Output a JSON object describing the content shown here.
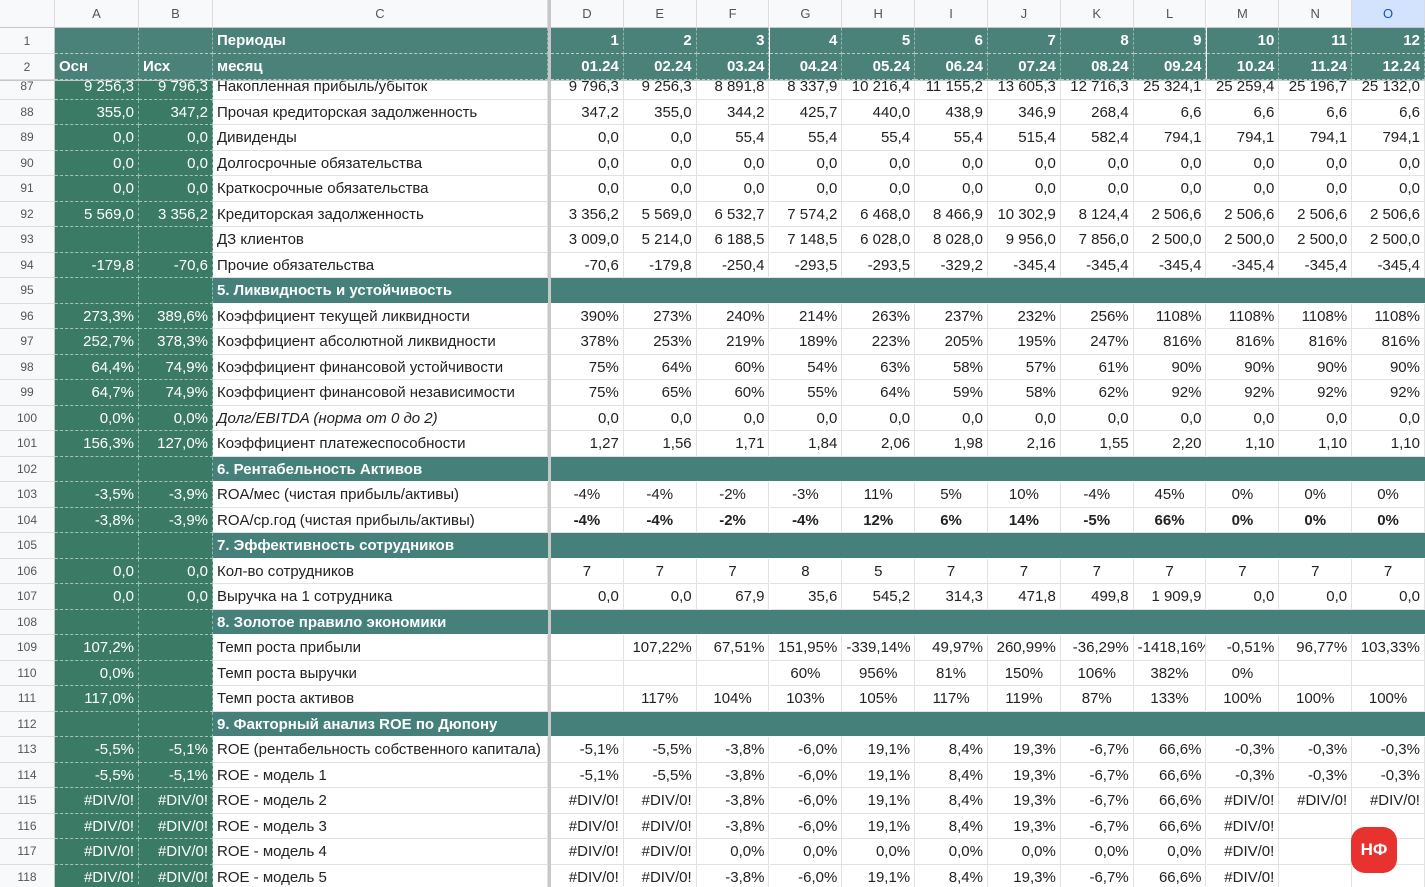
{
  "columns": [
    "A",
    "B",
    "C",
    "D",
    "E",
    "F",
    "G",
    "H",
    "I",
    "J",
    "K",
    "L",
    "M",
    "N",
    "O"
  ],
  "header_rows": [
    {
      "number": 1,
      "cells": [
        null,
        null,
        "Периоды",
        "1",
        "2",
        "3",
        "4",
        "5",
        "6",
        "7",
        "8",
        "9",
        "10",
        "11",
        "12"
      ]
    },
    {
      "number": 2,
      "cells": [
        "Осн",
        "Исх",
        "месяц",
        "01.24",
        "02.24",
        "03.24",
        "04.24",
        "05.24",
        "06.24",
        "07.24",
        "08.24",
        "09.24",
        "10.24",
        "11.24",
        "12.24"
      ]
    }
  ],
  "rows": [
    {
      "number": 87,
      "cells": [
        "9 256,3",
        "9 796,3",
        "Накопленная прибыль/убыток",
        "9 796,3",
        "9 256,3",
        "8 891,8",
        "8 337,9",
        "10 216,4",
        "11 155,2",
        "13 605,3",
        "12 716,3",
        "25 324,1",
        "25 259,4",
        "25 196,7",
        "25 132,0"
      ]
    },
    {
      "number": 88,
      "cells": [
        "355,0",
        "347,2",
        "Прочая кредиторская задолженность",
        "347,2",
        "355,0",
        "344,2",
        "425,7",
        "440,0",
        "438,9",
        "346,9",
        "268,4",
        "6,6",
        "6,6",
        "6,6",
        "6,6"
      ]
    },
    {
      "number": 89,
      "cells": [
        "0,0",
        "0,0",
        "Дивиденды",
        "0,0",
        "0,0",
        "55,4",
        "55,4",
        "55,4",
        "55,4",
        "515,4",
        "582,4",
        "794,1",
        "794,1",
        "794,1",
        "794,1"
      ]
    },
    {
      "number": 90,
      "cells": [
        "0,0",
        "0,0",
        "Долгосрочные обязательства",
        "0,0",
        "0,0",
        "0,0",
        "0,0",
        "0,0",
        "0,0",
        "0,0",
        "0,0",
        "0,0",
        "0,0",
        "0,0",
        "0,0"
      ]
    },
    {
      "number": 91,
      "cells": [
        "0,0",
        "0,0",
        "Краткосрочные обязательства",
        "0,0",
        "0,0",
        "0,0",
        "0,0",
        "0,0",
        "0,0",
        "0,0",
        "0,0",
        "0,0",
        "0,0",
        "0,0",
        "0,0"
      ]
    },
    {
      "number": 92,
      "cells": [
        "5 569,0",
        "3 356,2",
        "Кредиторская задолженность",
        "3 356,2",
        "5 569,0",
        "6 532,7",
        "7 574,2",
        "6 468,0",
        "8 466,9",
        "10 302,9",
        "8 124,4",
        "2 506,6",
        "2 506,6",
        "2 506,6",
        "2 506,6"
      ]
    },
    {
      "number": 93,
      "cells": [
        null,
        null,
        "ДЗ клиентов",
        "3 009,0",
        "5 214,0",
        "6 188,5",
        "7 148,5",
        "6 028,0",
        "8 028,0",
        "9 956,0",
        "7 856,0",
        "2 500,0",
        "2 500,0",
        "2 500,0",
        "2 500,0"
      ]
    },
    {
      "number": 94,
      "cells": [
        "-179,8",
        "-70,6",
        "Прочие обязательства",
        "-70,6",
        "-179,8",
        "-250,4",
        "-293,5",
        "-293,5",
        "-329,2",
        "-345,4",
        "-345,4",
        "-345,4",
        "-345,4",
        "-345,4",
        "-345,4"
      ]
    },
    {
      "number": 95,
      "section": "5. Ликвидность и устойчивость"
    },
    {
      "number": 96,
      "cells": [
        "273,3%",
        "389,6%",
        "Коэффициент текущей ликвидности",
        "390%",
        "273%",
        "240%",
        "214%",
        "263%",
        "237%",
        "232%",
        "256%",
        "1108%",
        "1108%",
        "1108%",
        "1108%"
      ]
    },
    {
      "number": 97,
      "cells": [
        "252,7%",
        "378,3%",
        "Коэффициент абсолютной ликвидности",
        "378%",
        "253%",
        "219%",
        "189%",
        "223%",
        "205%",
        "195%",
        "247%",
        "816%",
        "816%",
        "816%",
        "816%"
      ]
    },
    {
      "number": 98,
      "cells": [
        "64,4%",
        "74,9%",
        "Коэффициент финансовой устойчивости",
        "75%",
        "64%",
        "60%",
        "54%",
        "63%",
        "58%",
        "57%",
        "61%",
        "90%",
        "90%",
        "90%",
        "90%"
      ]
    },
    {
      "number": 99,
      "cells": [
        "64,7%",
        "74,9%",
        "Коэффициент финансовой независимости",
        "75%",
        "65%",
        "60%",
        "55%",
        "64%",
        "59%",
        "58%",
        "62%",
        "92%",
        "92%",
        "92%",
        "92%"
      ]
    },
    {
      "number": 100,
      "italic_label": true,
      "cells": [
        "0,0%",
        "0,0%",
        "Долг/EBITDA (норма от 0 до 2)",
        "0,0",
        "0,0",
        "0,0",
        "0,0",
        "0,0",
        "0,0",
        "0,0",
        "0,0",
        "0,0",
        "0,0",
        "0,0",
        "0,0"
      ]
    },
    {
      "number": 101,
      "cells": [
        "156,3%",
        "127,0%",
        "Коэффициент платежеспособности",
        "1,27",
        "1,56",
        "1,71",
        "1,84",
        "2,06",
        "1,98",
        "2,16",
        "1,55",
        "2,20",
        "1,10",
        "1,10",
        "1,10"
      ]
    },
    {
      "number": 102,
      "section": "6. Рентабельность Активов"
    },
    {
      "number": 103,
      "align": "center",
      "cells": [
        "-3,5%",
        "-3,9%",
        "ROA/мес (чистая прибыль/активы)",
        "-4%",
        "-4%",
        "-2%",
        "-3%",
        "11%",
        "5%",
        "10%",
        "-4%",
        "45%",
        "0%",
        "0%",
        "0%"
      ]
    },
    {
      "number": 104,
      "align": "center",
      "bold": true,
      "cells": [
        "-3,8%",
        "-3,9%",
        "ROA/ср.год (чистая прибыль/активы)",
        "-4%",
        "-4%",
        "-2%",
        "-4%",
        "12%",
        "6%",
        "14%",
        "-5%",
        "66%",
        "0%",
        "0%",
        "0%"
      ]
    },
    {
      "number": 105,
      "section": "7.  Эффективность сотрудников"
    },
    {
      "number": 106,
      "align": "center",
      "cells": [
        "0,0",
        "0,0",
        "Кол-во сотрудников",
        "7",
        "7",
        "7",
        "8",
        "5",
        "7",
        "7",
        "7",
        "7",
        "7",
        "7",
        "7"
      ]
    },
    {
      "number": 107,
      "cells": [
        "0,0",
        "0,0",
        "Выручка на 1 сотрудника",
        "0,0",
        "0,0",
        "67,9",
        "35,6",
        "545,2",
        "314,3",
        "471,8",
        "499,8",
        "1 909,9",
        "0,0",
        "0,0",
        "0,0"
      ]
    },
    {
      "number": 108,
      "section": "8. Золотое правило экономики"
    },
    {
      "number": 109,
      "cells": [
        "107,2%",
        null,
        "Темп роста прибыли",
        null,
        "107,22%",
        "67,51%",
        "151,95%",
        "-339,14%",
        "49,97%",
        "260,99%",
        "-36,29%",
        "-1418,16%",
        "-0,51%",
        "96,77%",
        "103,33%"
      ]
    },
    {
      "number": 110,
      "align": "center",
      "cells": [
        "0,0%",
        null,
        "Темп роста выручки",
        null,
        null,
        null,
        "60%",
        "956%",
        "81%",
        "150%",
        "106%",
        "382%",
        "0%",
        null,
        null
      ]
    },
    {
      "number": 111,
      "align": "center",
      "cells": [
        "117,0%",
        null,
        "Темп роста активов",
        null,
        "117%",
        "104%",
        "103%",
        "105%",
        "117%",
        "119%",
        "87%",
        "133%",
        "100%",
        "100%",
        "100%"
      ]
    },
    {
      "number": 112,
      "section": "9. Факторный анализ ROE по Дюпону"
    },
    {
      "number": 113,
      "cells": [
        "-5,5%",
        "-5,1%",
        "ROE (рентабельность собственного капитала)",
        "-5,1%",
        "-5,5%",
        "-3,8%",
        "-6,0%",
        "19,1%",
        "8,4%",
        "19,3%",
        "-6,7%",
        "66,6%",
        "-0,3%",
        "-0,3%",
        "-0,3%"
      ]
    },
    {
      "number": 114,
      "cells": [
        "-5,5%",
        "-5,1%",
        "ROE - модель 1",
        "-5,1%",
        "-5,5%",
        "-3,8%",
        "-6,0%",
        "19,1%",
        "8,4%",
        "19,3%",
        "-6,7%",
        "66,6%",
        "-0,3%",
        "-0,3%",
        "-0,3%"
      ]
    },
    {
      "number": 115,
      "cells": [
        "#DIV/0!",
        "#DIV/0!",
        "ROE - модель 2",
        "#DIV/0!",
        "#DIV/0!",
        "-3,8%",
        "-6,0%",
        "19,1%",
        "8,4%",
        "19,3%",
        "-6,7%",
        "66,6%",
        "#DIV/0!",
        "#DIV/0!",
        "#DIV/0!"
      ]
    },
    {
      "number": 116,
      "cells": [
        "#DIV/0!",
        "#DIV/0!",
        "ROE - модель 3",
        "#DIV/0!",
        "#DIV/0!",
        "-3,8%",
        "-6,0%",
        "19,1%",
        "8,4%",
        "19,3%",
        "-6,7%",
        "66,6%",
        "#DIV/0!",
        null,
        null
      ]
    },
    {
      "number": 117,
      "cells": [
        "#DIV/0!",
        "#DIV/0!",
        "ROE - модель 4",
        "#DIV/0!",
        "#DIV/0!",
        "0,0%",
        "0,0%",
        "0,0%",
        "0,0%",
        "0,0%",
        "0,0%",
        "0,0%",
        "#DIV/0!",
        null,
        null
      ]
    },
    {
      "number": 118,
      "cells": [
        "#DIV/0!",
        "#DIV/0!",
        "ROE - модель 5",
        "#DIV/0!",
        "#DIV/0!",
        "-3,8%",
        "-6,0%",
        "19,1%",
        "8,4%",
        "19,3%",
        "-6,7%",
        "66,6%",
        "#DIV/0!",
        null,
        null
      ]
    }
  ],
  "selected_column": 14,
  "badge": "НФ"
}
